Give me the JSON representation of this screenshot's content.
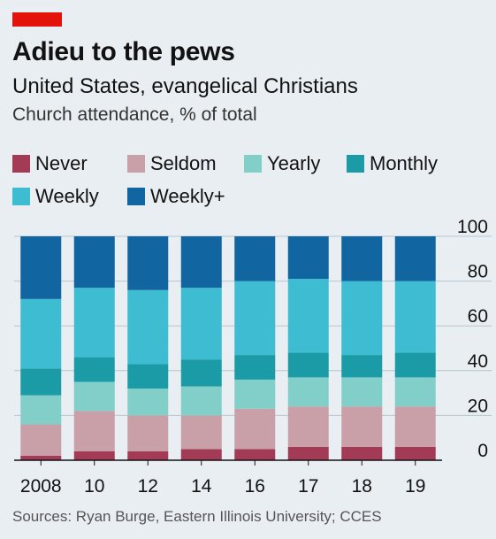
{
  "header": {
    "title": "Adieu to the pews",
    "subtitle": "United States, evangelical Christians",
    "unit": "Church attendance, % of total"
  },
  "legend": [
    {
      "label": "Never",
      "color": "#a33b56"
    },
    {
      "label": "Seldom",
      "color": "#c9a0a8"
    },
    {
      "label": "Yearly",
      "color": "#82cfc9"
    },
    {
      "label": "Monthly",
      "color": "#1a9ba5"
    },
    {
      "label": "Weekly",
      "color": "#3ebcd2"
    },
    {
      "label": "Weekly+",
      "color": "#1165a1"
    }
  ],
  "source": "Sources: Ryan Burge, Eastern Illinois University; CCES",
  "chart_data": {
    "type": "bar",
    "stacked": true,
    "categories": [
      "2008",
      "10",
      "12",
      "14",
      "16",
      "17",
      "18",
      "19"
    ],
    "ylim": [
      0,
      100
    ],
    "yticks": [
      0,
      20,
      40,
      60,
      80,
      100
    ],
    "series": [
      {
        "name": "Never",
        "color": "#a33b56",
        "values": [
          2,
          4,
          4,
          5,
          5,
          6,
          6,
          6
        ]
      },
      {
        "name": "Seldom",
        "color": "#c9a0a8",
        "values": [
          14,
          18,
          16,
          15,
          18,
          18,
          18,
          18
        ]
      },
      {
        "name": "Yearly",
        "color": "#82cfc9",
        "values": [
          13,
          13,
          12,
          13,
          13,
          13,
          13,
          13
        ]
      },
      {
        "name": "Monthly",
        "color": "#1a9ba5",
        "values": [
          12,
          11,
          11,
          12,
          11,
          11,
          10,
          11
        ]
      },
      {
        "name": "Weekly",
        "color": "#3ebcd2",
        "values": [
          31,
          31,
          33,
          32,
          33,
          33,
          33,
          32
        ]
      },
      {
        "name": "Weekly+",
        "color": "#1165a1",
        "values": [
          28,
          23,
          24,
          23,
          20,
          19,
          20,
          20
        ]
      }
    ],
    "grid": true
  }
}
